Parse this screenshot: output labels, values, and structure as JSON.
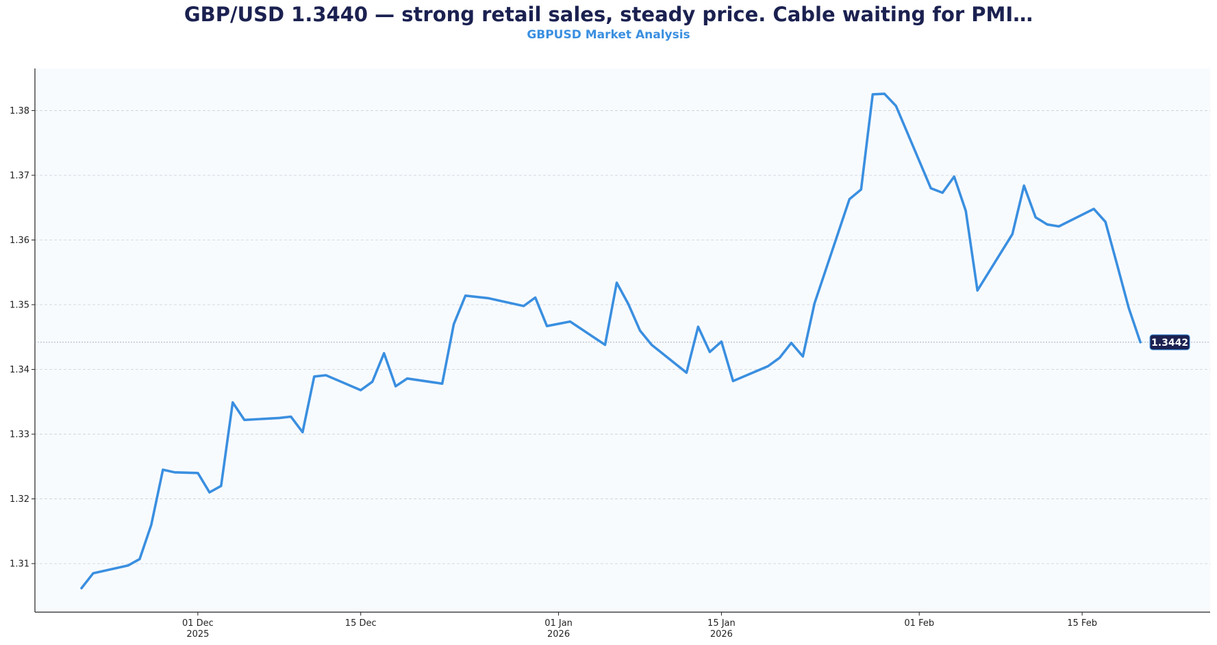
{
  "chart_data": {
    "type": "line",
    "title": "GBP/USD 1.3440 — strong retail sales, steady price. Cable waiting for PMI…",
    "subtitle": "GBPUSD Market Analysis",
    "xlabel": "",
    "ylabel": "",
    "ylim": [
      1.3025,
      1.3865
    ],
    "y_ticks": [
      1.31,
      1.32,
      1.33,
      1.34,
      1.35,
      1.36,
      1.37,
      1.38
    ],
    "y_tick_labels": [
      "1.31",
      "1.32",
      "1.33",
      "1.34",
      "1.35",
      "1.36",
      "1.37",
      "1.38"
    ],
    "x_range": [
      "2025-11-17",
      "2026-02-26"
    ],
    "x_ticks": [
      {
        "date": "2025-12-01",
        "label": "01 Dec",
        "year": "2025"
      },
      {
        "date": "2025-12-15",
        "label": "15 Dec",
        "year": ""
      },
      {
        "date": "2026-01-01",
        "label": "01 Jan",
        "year": "2026"
      },
      {
        "date": "2026-01-15",
        "label": "15 Jan",
        "year": "2026"
      },
      {
        "date": "2026-02-01",
        "label": "01 Feb",
        "year": ""
      },
      {
        "date": "2026-02-15",
        "label": "15 Feb",
        "year": ""
      }
    ],
    "grid": true,
    "line_color": "#3a8fe0",
    "last_value_label": "1.3442",
    "last_value": 1.3442,
    "tag_color": "#1b2150",
    "series": [
      {
        "name": "GBPUSD",
        "x": [
          "2025-11-21",
          "2025-11-22",
          "2025-11-25",
          "2025-11-26",
          "2025-11-27",
          "2025-11-28",
          "2025-11-29",
          "2025-12-01",
          "2025-12-02",
          "2025-12-03",
          "2025-12-04",
          "2025-12-05",
          "2025-12-08",
          "2025-12-09",
          "2025-12-10",
          "2025-12-11",
          "2025-12-12",
          "2025-12-15",
          "2025-12-16",
          "2025-12-17",
          "2025-12-18",
          "2025-12-19",
          "2025-12-22",
          "2025-12-23",
          "2025-12-24",
          "2025-12-26",
          "2025-12-29",
          "2025-12-30",
          "2025-12-31",
          "2026-01-02",
          "2026-01-05",
          "2026-01-06",
          "2026-01-07",
          "2026-01-08",
          "2026-01-09",
          "2026-01-12",
          "2026-01-13",
          "2026-01-14",
          "2026-01-15",
          "2026-01-16",
          "2026-01-19",
          "2026-01-20",
          "2026-01-21",
          "2026-01-22",
          "2026-01-23",
          "2026-01-26",
          "2026-01-27",
          "2026-01-28",
          "2026-01-29",
          "2026-01-30",
          "2026-02-02",
          "2026-02-03",
          "2026-02-04",
          "2026-02-05",
          "2026-02-06",
          "2026-02-09",
          "2026-02-10",
          "2026-02-11",
          "2026-02-12",
          "2026-02-13",
          "2026-02-16",
          "2026-02-17",
          "2026-02-18",
          "2026-02-19",
          "2026-02-20"
        ],
        "values": [
          1.3062,
          1.3085,
          1.3097,
          1.3107,
          1.316,
          1.3245,
          1.3241,
          1.324,
          1.321,
          1.322,
          1.3349,
          1.3322,
          1.3325,
          1.3327,
          1.3303,
          1.3389,
          1.3391,
          1.3368,
          1.3381,
          1.3425,
          1.3374,
          1.3386,
          1.3378,
          1.347,
          1.3514,
          1.351,
          1.3498,
          1.3511,
          1.3467,
          1.3474,
          1.3438,
          1.3534,
          1.3501,
          1.346,
          1.3438,
          1.3395,
          1.3466,
          1.3427,
          1.3443,
          1.3382,
          1.3405,
          1.3418,
          1.3441,
          1.342,
          1.3502,
          1.3663,
          1.3678,
          1.3825,
          1.3826,
          1.3807,
          1.368,
          1.3673,
          1.3698,
          1.3645,
          1.3522,
          1.3609,
          1.3684,
          1.3635,
          1.3624,
          1.3621,
          1.3648,
          1.3628,
          1.3562,
          1.3495,
          1.3442
        ]
      }
    ]
  }
}
